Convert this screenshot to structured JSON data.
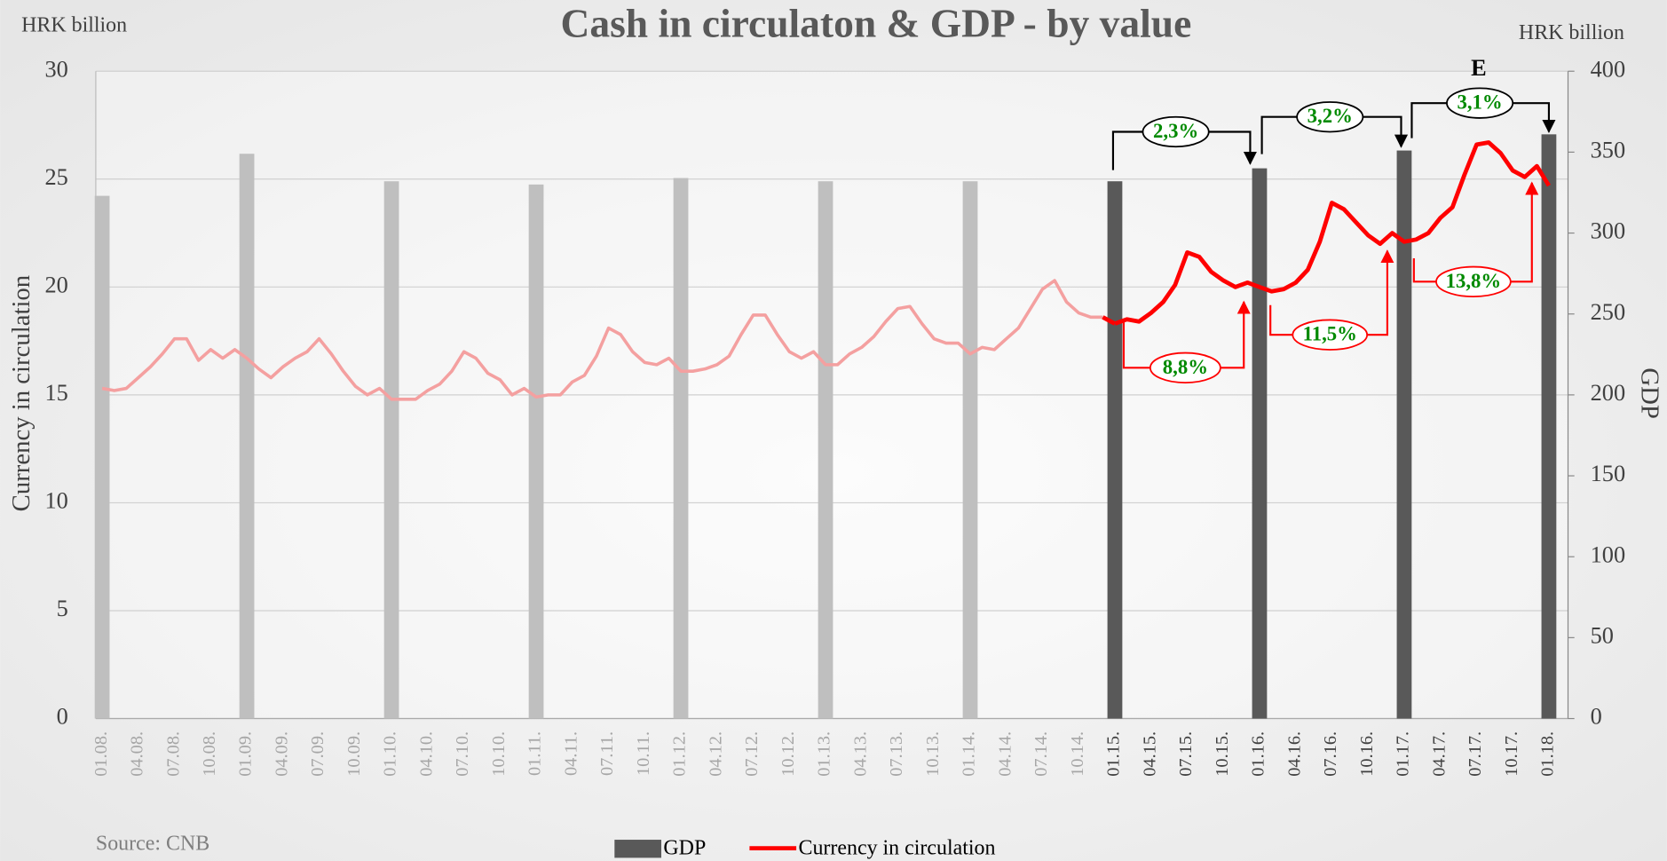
{
  "chart_data": {
    "type": "bar_line",
    "title": "Cash in circulaton & GDP - by value",
    "y_unit": "HRK billion",
    "y2_unit": "HRK billion",
    "ylabel": "Currency in circulation",
    "y2label": "GDP",
    "source": "Source: CNB",
    "ylim": [
      0,
      30
    ],
    "yticks": [
      0,
      5,
      10,
      15,
      20,
      25,
      30
    ],
    "y2lim": [
      0,
      400
    ],
    "y2ticks": [
      0,
      50,
      100,
      150,
      200,
      250,
      300,
      350,
      400
    ],
    "grid": true,
    "categories": [
      "01.08.",
      null,
      null,
      "04.08.",
      null,
      null,
      "07.08.",
      null,
      null,
      "10.08.",
      null,
      null,
      "01.09.",
      null,
      null,
      "04.09.",
      null,
      null,
      "07.09.",
      null,
      null,
      "10.09.",
      null,
      null,
      "01.10.",
      null,
      null,
      "04.10.",
      null,
      null,
      "07.10.",
      null,
      null,
      "10.10.",
      null,
      null,
      "01.11.",
      null,
      null,
      "04.11.",
      null,
      null,
      "07.11.",
      null,
      null,
      "10.11.",
      null,
      null,
      "01.12.",
      null,
      null,
      "04.12.",
      null,
      null,
      "07.12.",
      null,
      null,
      "10.12.",
      null,
      null,
      "01.13.",
      null,
      null,
      "04.13.",
      null,
      null,
      "07.13.",
      null,
      null,
      "10.13.",
      null,
      null,
      "01.14.",
      null,
      null,
      "04.14.",
      null,
      null,
      "07.14.",
      null,
      null,
      "10.14.",
      null,
      null,
      "01.15.",
      null,
      null,
      "04.15.",
      null,
      null,
      "07.15.",
      null,
      null,
      "10.15.",
      null,
      null,
      "01.16.",
      null,
      null,
      "04.16.",
      null,
      null,
      "07.16.",
      null,
      null,
      "10.16.",
      null,
      null,
      "01.17.",
      null,
      null,
      "04.17.",
      null,
      null,
      "07.17.",
      null,
      null,
      "10.17.",
      null,
      null,
      "01.18."
    ],
    "series": [
      {
        "name": "GDP",
        "type": "bar",
        "axis": "y2",
        "color": "#595959",
        "values": [
          323,
          null,
          null,
          null,
          null,
          null,
          null,
          null,
          null,
          null,
          null,
          null,
          349,
          null,
          null,
          null,
          null,
          null,
          null,
          null,
          null,
          null,
          null,
          null,
          332,
          null,
          null,
          null,
          null,
          null,
          null,
          null,
          null,
          null,
          null,
          null,
          330,
          null,
          null,
          null,
          null,
          null,
          null,
          null,
          null,
          null,
          null,
          null,
          334,
          null,
          null,
          null,
          null,
          null,
          null,
          null,
          null,
          null,
          null,
          null,
          332,
          null,
          null,
          null,
          null,
          null,
          null,
          null,
          null,
          null,
          null,
          null,
          332,
          null,
          null,
          null,
          null,
          null,
          null,
          null,
          null,
          null,
          null,
          null,
          332,
          null,
          null,
          null,
          null,
          null,
          null,
          null,
          null,
          null,
          null,
          null,
          340,
          null,
          null,
          null,
          null,
          null,
          null,
          null,
          null,
          null,
          null,
          null,
          351,
          null,
          null,
          null,
          null,
          null,
          null,
          null,
          null,
          null,
          null,
          null,
          361
        ],
        "colors": [
          "#bfbfbf",
          null,
          null,
          null,
          null,
          null,
          null,
          null,
          null,
          null,
          null,
          null,
          "#bfbfbf",
          null,
          null,
          null,
          null,
          null,
          null,
          null,
          null,
          null,
          null,
          null,
          "#bfbfbf",
          null,
          null,
          null,
          null,
          null,
          null,
          null,
          null,
          null,
          null,
          null,
          "#bfbfbf",
          null,
          null,
          null,
          null,
          null,
          null,
          null,
          null,
          null,
          null,
          null,
          "#bfbfbf",
          null,
          null,
          null,
          null,
          null,
          null,
          null,
          null,
          null,
          null,
          null,
          "#bfbfbf",
          null,
          null,
          null,
          null,
          null,
          null,
          null,
          null,
          null,
          null,
          null,
          "#bfbfbf",
          null,
          null,
          null,
          null,
          null,
          null,
          null,
          null,
          null,
          null,
          null,
          "#595959",
          null,
          null,
          null,
          null,
          null,
          null,
          null,
          null,
          null,
          null,
          null,
          "#595959",
          null,
          null,
          null,
          null,
          null,
          null,
          null,
          null,
          null,
          null,
          null,
          "#595959",
          null,
          null,
          null,
          null,
          null,
          null,
          null,
          null,
          null,
          null,
          null,
          "#595959"
        ]
      },
      {
        "name": "Currency in circulation",
        "type": "line",
        "axis": "y",
        "color": "#ff0000",
        "values": [
          15.3,
          15.2,
          15.3,
          15.8,
          16.3,
          16.9,
          17.6,
          17.6,
          16.6,
          17.1,
          16.7,
          17.1,
          16.7,
          16.2,
          15.8,
          16.3,
          16.7,
          17.0,
          17.6,
          16.9,
          16.1,
          15.4,
          15.0,
          15.3,
          14.8,
          14.8,
          14.8,
          15.2,
          15.5,
          16.1,
          17.0,
          16.7,
          16.0,
          15.7,
          15.0,
          15.3,
          14.9,
          15.0,
          15.0,
          15.6,
          15.9,
          16.8,
          18.1,
          17.8,
          17.0,
          16.5,
          16.4,
          16.7,
          16.1,
          16.1,
          16.2,
          16.4,
          16.8,
          17.8,
          18.7,
          18.7,
          17.8,
          17.0,
          16.7,
          17.0,
          16.4,
          16.4,
          16.9,
          17.2,
          17.7,
          18.4,
          19.0,
          19.1,
          18.3,
          17.6,
          17.4,
          17.4,
          16.9,
          17.2,
          17.1,
          17.6,
          18.1,
          19.0,
          19.9,
          20.3,
          19.3,
          18.8,
          18.6,
          18.6,
          18.3,
          18.5,
          18.4,
          18.8,
          19.3,
          20.1,
          21.6,
          21.4,
          20.7,
          20.3,
          20.0,
          20.2,
          20.0,
          19.8,
          19.9,
          20.2,
          20.8,
          22.1,
          23.9,
          23.6,
          23.0,
          22.4,
          22.0,
          22.5,
          22.1,
          22.2,
          22.5,
          23.2,
          23.7,
          25.2,
          26.6,
          26.7,
          26.2,
          25.4,
          25.1,
          25.6,
          24.7
        ],
        "colors": [
          "#f4a0a0",
          "#f4a0a0",
          "#f4a0a0",
          "#f4a0a0",
          "#f4a0a0",
          "#f4a0a0",
          "#f4a0a0",
          "#f4a0a0",
          "#f4a0a0",
          "#f4a0a0",
          "#f4a0a0",
          "#f4a0a0",
          "#f4a0a0",
          "#f4a0a0",
          "#f4a0a0",
          "#f4a0a0",
          "#f4a0a0",
          "#f4a0a0",
          "#f4a0a0",
          "#f4a0a0",
          "#f4a0a0",
          "#f4a0a0",
          "#f4a0a0",
          "#f4a0a0",
          "#f4a0a0",
          "#f4a0a0",
          "#f4a0a0",
          "#f4a0a0",
          "#f4a0a0",
          "#f4a0a0",
          "#f4a0a0",
          "#f4a0a0",
          "#f4a0a0",
          "#f4a0a0",
          "#f4a0a0",
          "#f4a0a0",
          "#f4a0a0",
          "#f4a0a0",
          "#f4a0a0",
          "#f4a0a0",
          "#f4a0a0",
          "#f4a0a0",
          "#f4a0a0",
          "#f4a0a0",
          "#f4a0a0",
          "#f4a0a0",
          "#f4a0a0",
          "#f4a0a0",
          "#f4a0a0",
          "#f4a0a0",
          "#f4a0a0",
          "#f4a0a0",
          "#f4a0a0",
          "#f4a0a0",
          "#f4a0a0",
          "#f4a0a0",
          "#f4a0a0",
          "#f4a0a0",
          "#f4a0a0",
          "#f4a0a0",
          "#f4a0a0",
          "#f4a0a0",
          "#f4a0a0",
          "#f4a0a0",
          "#f4a0a0",
          "#f4a0a0",
          "#f4a0a0",
          "#f4a0a0",
          "#f4a0a0",
          "#f4a0a0",
          "#f4a0a0",
          "#f4a0a0",
          "#f4a0a0",
          "#f4a0a0",
          "#f4a0a0",
          "#f4a0a0",
          "#f4a0a0",
          "#f4a0a0",
          "#f4a0a0",
          "#f4a0a0",
          "#f4a0a0",
          "#f4a0a0",
          "#f4a0a0",
          "#f4a0a0",
          "#ff0000",
          "#ff0000",
          "#ff0000",
          "#ff0000",
          "#ff0000",
          "#ff0000",
          "#ff0000",
          "#ff0000",
          "#ff0000",
          "#ff0000",
          "#ff0000",
          "#ff0000",
          "#ff0000",
          "#ff0000",
          "#ff0000",
          "#ff0000",
          "#ff0000",
          "#ff0000",
          "#ff0000",
          "#ff0000",
          "#ff0000",
          "#ff0000",
          "#ff0000",
          "#ff0000",
          "#ff0000",
          "#ff0000",
          "#ff0000",
          "#ff0000",
          "#ff0000",
          "#ff0000",
          "#ff0000",
          "#ff0000",
          "#ff0000",
          "#ff0000",
          "#ff0000",
          "#ff0000",
          "#ff0000"
        ]
      }
    ],
    "annotations": [
      "2,3%",
      "3,2%",
      "3,1%",
      "8,8%",
      "11,5%",
      "13,8%",
      "E"
    ]
  }
}
